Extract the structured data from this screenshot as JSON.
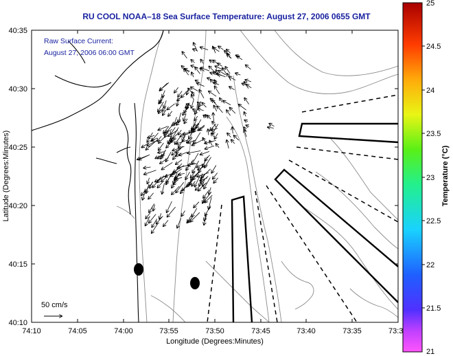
{
  "title": "RU COOL  NOAA–18  Sea Surface Temperature:  August 27, 2006 0655 GMT",
  "inner_text": {
    "line1": "Raw Surface Current:",
    "line2": "August 27, 2006 06:00 GMT"
  },
  "scale_label": "50 cm/s",
  "axes": {
    "xlabel": "Longitude (Degrees:Minutes)",
    "ylabel": "Latitude (Degrees:Minutes)",
    "xticks": [
      "74:10",
      "74:05",
      "74:00",
      "73:55",
      "73:50",
      "73:45",
      "73:40",
      "73:35",
      "73:3"
    ],
    "yticks": [
      "40:35",
      "40:30",
      "40:25",
      "40:20",
      "40:15",
      "40:10"
    ]
  },
  "colorbar": {
    "title": "Temperature (°C)",
    "ticks": [
      "25",
      "24.5",
      "24",
      "23.5",
      "23",
      "22.5",
      "22",
      "21.5",
      "21"
    ],
    "range": [
      21,
      25
    ]
  },
  "colors": {
    "title": "#1a23a0",
    "inner_text": "#1a23a0",
    "land_outline": "#000000",
    "bathymetry": "#8a8a8a"
  }
}
